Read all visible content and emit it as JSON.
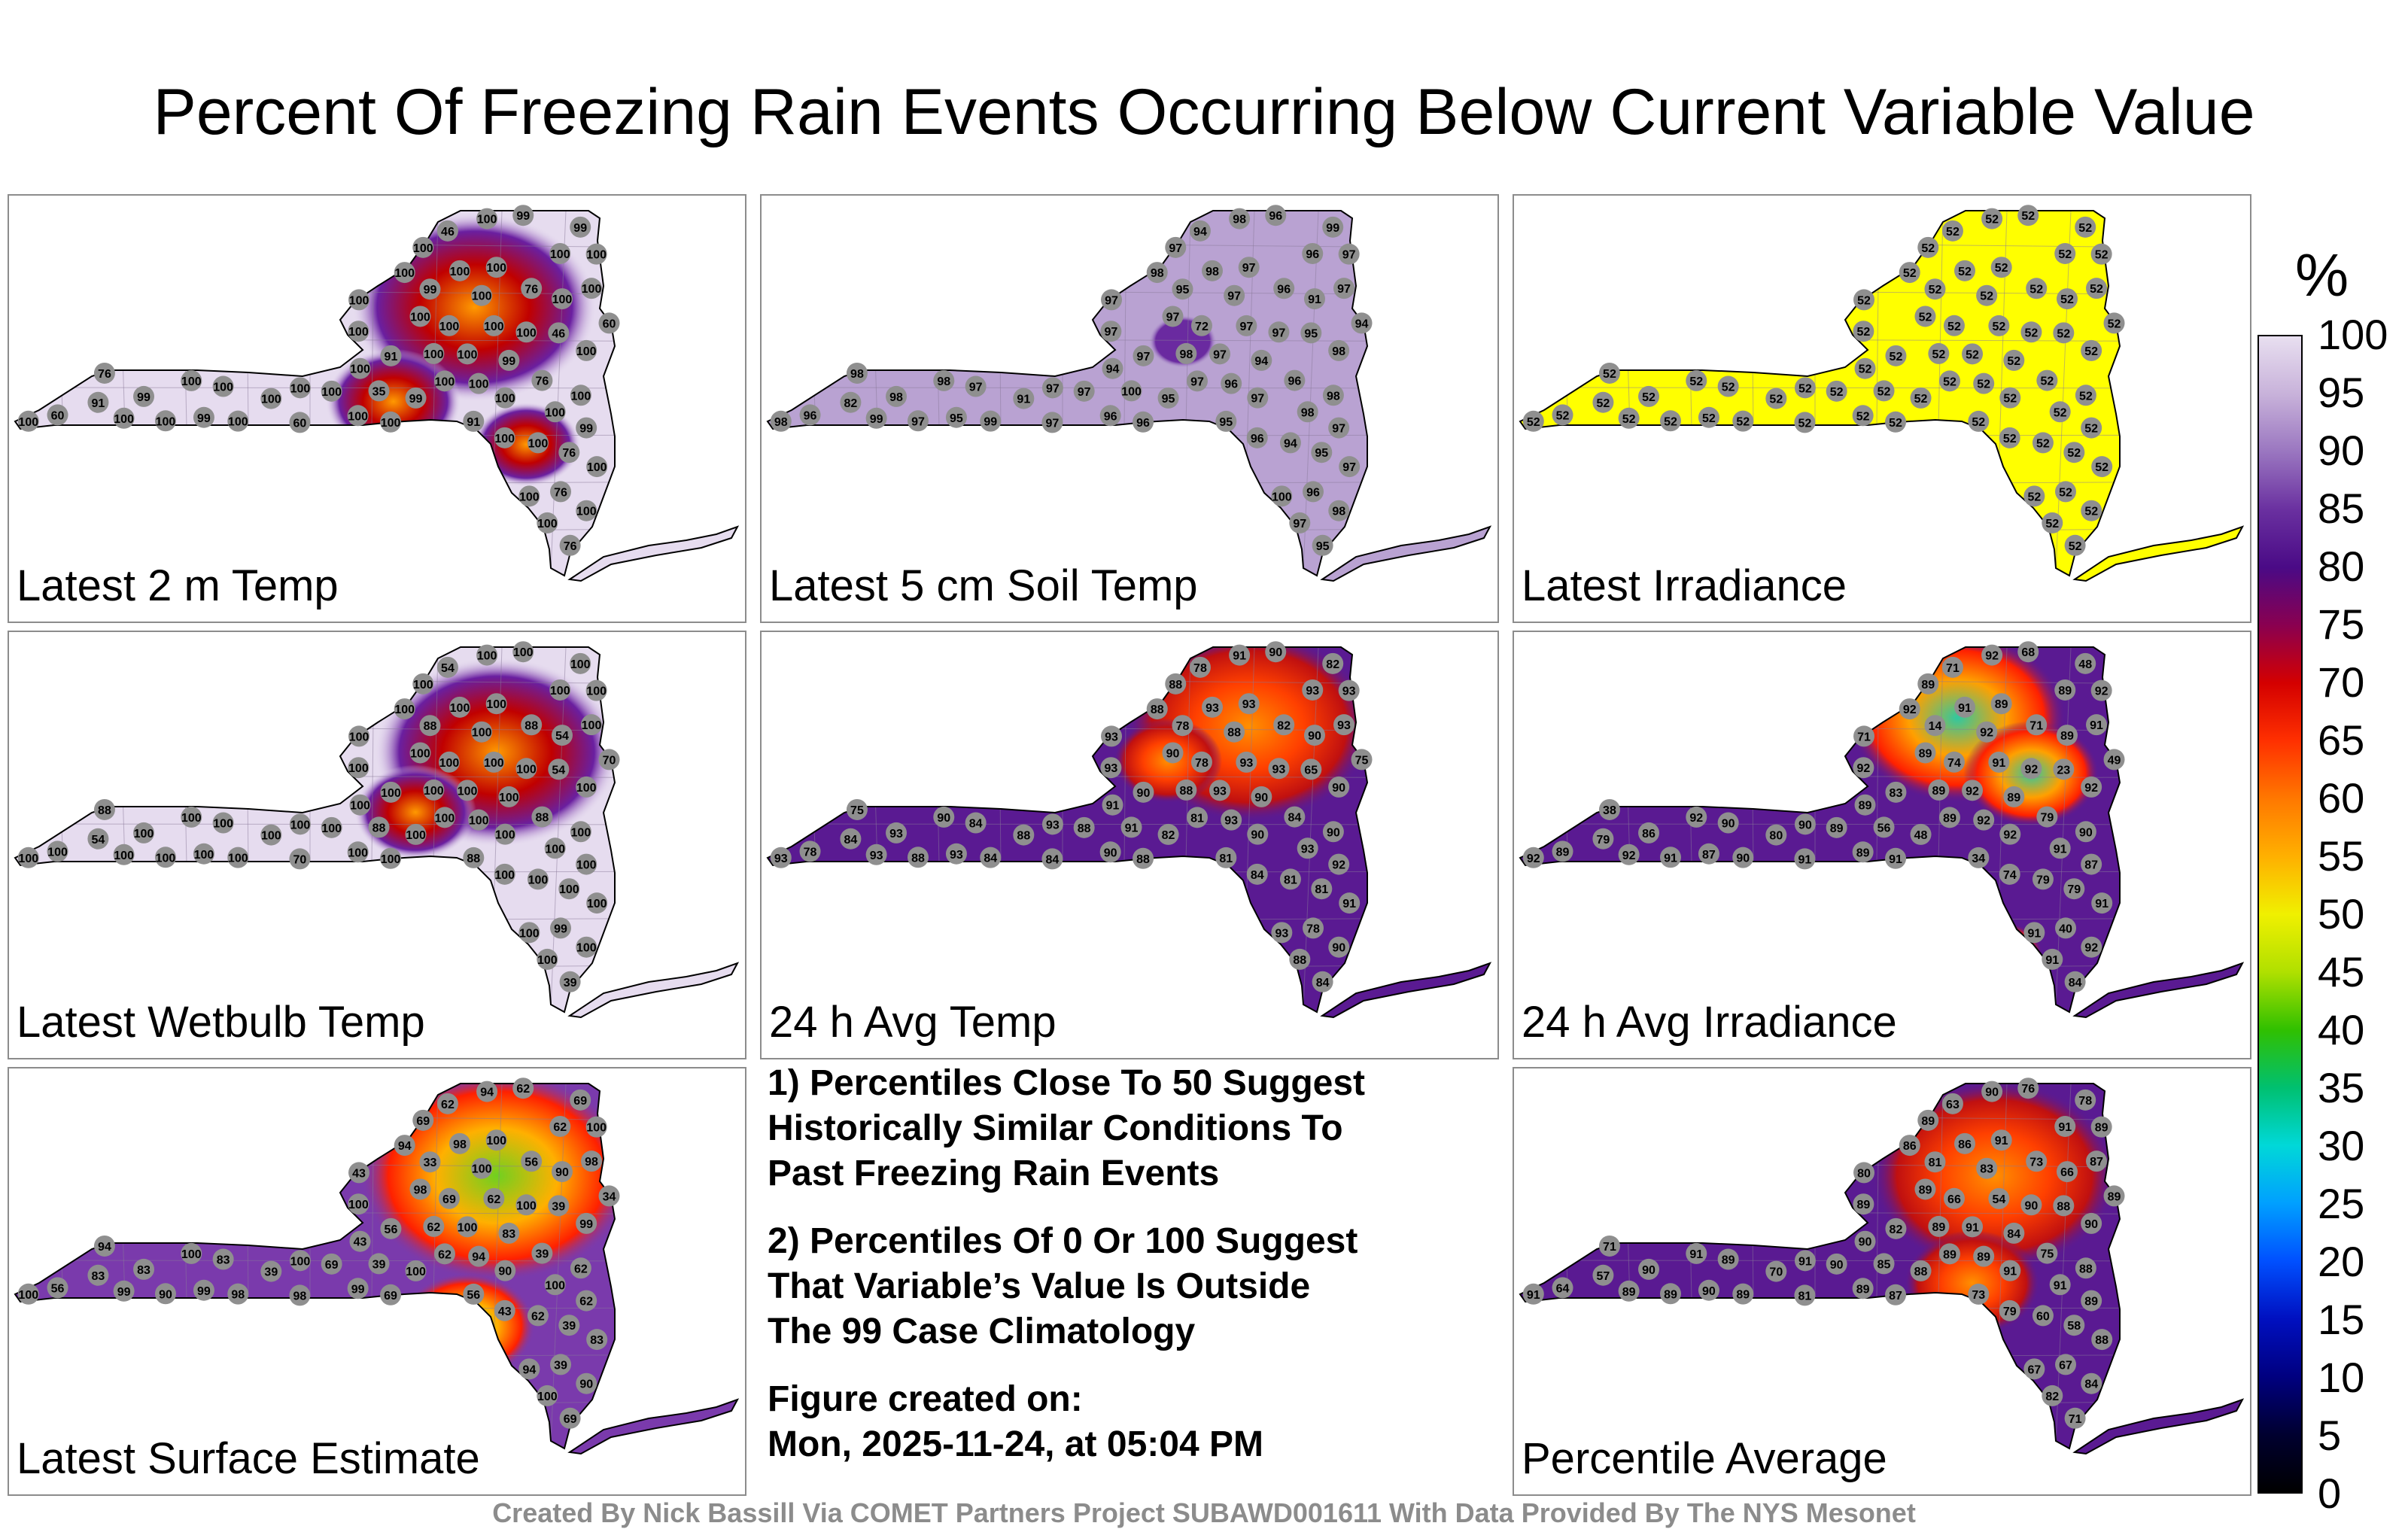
{
  "title": "Percent Of Freezing Rain Events Occurring Below Current Variable Value",
  "panels": [
    {
      "id": "p1",
      "label": "Latest 2 m Temp",
      "scheme": "low",
      "hot": [
        [
          0.63,
          0.26,
          0.9
        ],
        [
          0.52,
          0.48,
          0.5
        ],
        [
          0.7,
          0.58,
          0.4
        ]
      ],
      "stations": [
        "99",
        "91",
        "76",
        "76",
        "100",
        "76",
        "46",
        "60",
        "35",
        "91",
        "60",
        "99",
        "76",
        "46",
        "76",
        "76",
        "100",
        "99",
        "100",
        "100",
        "100",
        "100",
        "100",
        "100",
        "100",
        "100",
        "100",
        "99",
        "91",
        "99",
        "60",
        "100",
        "100",
        "100",
        "100",
        "99",
        "99",
        "100",
        "100",
        "100",
        "100",
        "100",
        "100",
        "100",
        "100",
        "100",
        "100",
        "100",
        "100",
        "100",
        "100",
        "100",
        "99",
        "100",
        "100",
        "100",
        "100",
        "100",
        "100",
        "100",
        "100",
        "100",
        "100",
        "100",
        "100"
      ]
    },
    {
      "id": "p2",
      "label": "Latest 5 cm Soil Temp",
      "scheme": "soil",
      "hot": [
        [
          0.57,
          0.34,
          0.25
        ]
      ],
      "stations": [
        "99",
        "95",
        "96",
        "96",
        "91",
        "95",
        "95",
        "94",
        "100",
        "82",
        "96",
        "95",
        "98",
        "94",
        "95",
        "96",
        "96",
        "96",
        "72",
        "94",
        "91",
        "97",
        "97",
        "100",
        "98",
        "97",
        "97",
        "97",
        "97",
        "94",
        "97",
        "96",
        "97",
        "96",
        "94",
        "98",
        "95",
        "97",
        "98",
        "97",
        "98",
        "98",
        "97",
        "97",
        "97",
        "99",
        "96",
        "98",
        "97",
        "99",
        "98",
        "97",
        "95",
        "97",
        "98",
        "98",
        "97",
        "96",
        "97",
        "97",
        "98",
        "97",
        "97",
        "97",
        "98"
      ]
    },
    {
      "id": "p3",
      "label": "Latest Irradiance",
      "scheme": "flat",
      "hot": [],
      "stations": [
        "52",
        "52",
        "52",
        "52",
        "52",
        "52",
        "52",
        "52",
        "52",
        "52",
        "52",
        "52",
        "52",
        "52",
        "52",
        "52",
        "52",
        "52",
        "52",
        "52",
        "52",
        "52",
        "52",
        "52",
        "52",
        "52",
        "52",
        "52",
        "52",
        "52",
        "52",
        "52",
        "52",
        "52",
        "52",
        "52",
        "52",
        "52",
        "52",
        "52",
        "52",
        "52",
        "52",
        "52",
        "52",
        "52",
        "52",
        "52",
        "52",
        "52",
        "52",
        "52",
        "52",
        "52",
        "52",
        "52",
        "52",
        "52",
        "52",
        "52",
        "52",
        "52",
        "52",
        "52",
        "52"
      ]
    },
    {
      "id": "p4",
      "label": "Latest Wetbulb Temp",
      "scheme": "low",
      "hot": [
        [
          0.66,
          0.28,
          0.9
        ],
        [
          0.55,
          0.42,
          0.45
        ]
      ],
      "stations": [
        "100",
        "88",
        "99",
        "88",
        "54",
        "39",
        "54",
        "70",
        "88",
        "54",
        "100",
        "88",
        "88",
        "54",
        "100",
        "88",
        "100",
        "100",
        "100",
        "100",
        "100",
        "100",
        "100",
        "100",
        "100",
        "100",
        "100",
        "100",
        "100",
        "100",
        "70",
        "100",
        "100",
        "100",
        "100",
        "100",
        "100",
        "100",
        "100",
        "100",
        "100",
        "100",
        "100",
        "100",
        "100",
        "100",
        "100",
        "100",
        "100",
        "100",
        "100",
        "100",
        "100",
        "100",
        "100",
        "100",
        "100",
        "100",
        "100",
        "100",
        "100",
        "100",
        "100",
        "100",
        "100"
      ]
    },
    {
      "id": "p5",
      "label": "24 h Avg Temp",
      "scheme": "mid",
      "hot": [
        [
          0.66,
          0.22,
          0.9
        ],
        [
          0.55,
          0.3,
          0.4
        ]
      ],
      "stations": [
        "82",
        "81",
        "78",
        "82",
        "90",
        "84",
        "65",
        "75",
        "91",
        "84",
        "78",
        "78",
        "75",
        "78",
        "81",
        "84",
        "84",
        "90",
        "78",
        "81",
        "88",
        "93",
        "93",
        "93",
        "93",
        "81",
        "88",
        "92",
        "90",
        "90",
        "84",
        "88",
        "84",
        "93",
        "91",
        "93",
        "93",
        "90",
        "88",
        "91",
        "90",
        "88",
        "93",
        "88",
        "88",
        "84",
        "90",
        "90",
        "93",
        "93",
        "90",
        "88",
        "82",
        "88",
        "90",
        "91",
        "90",
        "93",
        "93",
        "93",
        "93",
        "93",
        "93",
        "93",
        "93"
      ]
    },
    {
      "id": "p6",
      "label": "24 h Avg Irradiance",
      "scheme": "irr",
      "hot": [
        [
          0.6,
          0.2,
          0.8
        ],
        [
          0.7,
          0.33,
          0.5
        ],
        [
          0.66,
          0.75,
          0.3
        ]
      ],
      "stations": [
        "48",
        "34",
        "40",
        "71",
        "89",
        "84",
        "23",
        "49",
        "56",
        "79",
        "89",
        "14",
        "38",
        "71",
        "79",
        "79",
        "74",
        "68",
        "74",
        "79",
        "80",
        "71",
        "91",
        "91",
        "91",
        "89",
        "89",
        "87",
        "83",
        "89",
        "91",
        "91",
        "90",
        "89",
        "89",
        "86",
        "87",
        "89",
        "89",
        "91",
        "90",
        "92",
        "91",
        "91",
        "89",
        "90",
        "89",
        "92",
        "89",
        "92",
        "92",
        "91",
        "48",
        "92",
        "92",
        "92",
        "92",
        "92",
        "92",
        "90",
        "91",
        "92",
        "92",
        "92",
        "92"
      ]
    },
    {
      "id": "p7",
      "label": "Latest Surface Estimate",
      "scheme": "surf",
      "hot": [
        [
          0.66,
          0.25,
          1.0
        ],
        [
          0.62,
          0.6,
          0.5
        ]
      ],
      "stations": [
        "69",
        "56",
        "39",
        "56",
        "90",
        "69",
        "39",
        "34",
        "39",
        "83",
        "56",
        "33",
        "94",
        "62",
        "39",
        "39",
        "43",
        "62",
        "69",
        "62",
        "39",
        "43",
        "62",
        "94",
        "98",
        "62",
        "69",
        "62",
        "56",
        "83",
        "98",
        "69",
        "83",
        "62",
        "43",
        "83",
        "99",
        "98",
        "62",
        "83",
        "62",
        "94",
        "98",
        "90",
        "69",
        "98",
        "99",
        "100",
        "100",
        "99",
        "99",
        "100",
        "100",
        "100",
        "90",
        "94",
        "90",
        "94",
        "100",
        "100",
        "100",
        "100",
        "100",
        "100",
        "100"
      ]
    },
    {
      "id": "p9",
      "label": "Percentile Average",
      "scheme": "mid",
      "hot": [
        [
          0.65,
          0.25,
          0.9
        ],
        [
          0.62,
          0.5,
          0.5
        ]
      ],
      "stations": [
        "78",
        "73",
        "67",
        "73",
        "66",
        "71",
        "88",
        "89",
        "85",
        "57",
        "64",
        "81",
        "71",
        "63",
        "58",
        "75",
        "79",
        "76",
        "66",
        "60",
        "70",
        "80",
        "54",
        "67",
        "86",
        "89",
        "89",
        "89",
        "82",
        "84",
        "81",
        "87",
        "89",
        "91",
        "90",
        "90",
        "90",
        "89",
        "89",
        "88",
        "88",
        "86",
        "87",
        "89",
        "90",
        "89",
        "89",
        "91",
        "91",
        "89",
        "90",
        "82",
        "88",
        "83",
        "84",
        "90",
        "91",
        "89",
        "90",
        "91",
        "91",
        "89",
        "89",
        "91",
        "91"
      ]
    }
  ],
  "notes": {
    "note1": [
      "1) Percentiles Close To 50 Suggest",
      "Historically Similar Conditions To",
      "Past Freezing Rain Events"
    ],
    "note2": [
      "2) Percentiles Of 0 Or 100 Suggest",
      "That Variable’s Value Is Outside",
      "The 99 Case Climatology"
    ],
    "created_label": "Figure created on:",
    "created_value": "Mon, 2025-11-24, at 05:04 PM"
  },
  "footer": "Created By Nick Bassill Via COMET Partners Project SUBAWD001611 With Data Provided By The NYS Mesonet",
  "colorbar": {
    "unit": "%",
    "ticks": [
      "100",
      "95",
      "90",
      "85",
      "80",
      "75",
      "70",
      "65",
      "60",
      "55",
      "50",
      "45",
      "40",
      "35",
      "30",
      "25",
      "20",
      "15",
      "10",
      "5",
      "0"
    ],
    "stops": [
      "#e8dff0",
      "#c8b2da",
      "#9a76c0",
      "#6a30a0",
      "#4a0a86",
      "#8a0050",
      "#d40000",
      "#ff3000",
      "#ff7800",
      "#ffb000",
      "#f0f000",
      "#b0e000",
      "#30c000",
      "#00c070",
      "#00d8d8",
      "#00a0ff",
      "#0050ff",
      "#0010c0",
      "#000080",
      "#000030",
      "#000000"
    ]
  },
  "chart_data": [
    {
      "type": "heatmap",
      "title": "Latest 2 m Temp",
      "legend": "%",
      "range": [
        0,
        100
      ],
      "values": [
        99,
        91,
        76,
        76,
        100,
        76,
        46,
        60,
        35,
        91,
        60,
        99,
        76,
        46,
        100,
        100,
        100,
        100,
        60,
        100,
        99,
        100
      ]
    },
    {
      "type": "heatmap",
      "title": "Latest 5 cm Soil Temp",
      "legend": "%",
      "range": [
        0,
        100
      ],
      "values": [
        99,
        95,
        96,
        96,
        91,
        94,
        82,
        72,
        97,
        98,
        97,
        96,
        98,
        97
      ]
    },
    {
      "type": "heatmap",
      "title": "Latest Irradiance",
      "legend": "%",
      "range": [
        0,
        100
      ],
      "values": [
        52
      ]
    },
    {
      "type": "heatmap",
      "title": "Latest Wetbulb Temp",
      "legend": "%",
      "range": [
        0,
        100
      ],
      "values": [
        100,
        88,
        99,
        54,
        39,
        70,
        100
      ]
    },
    {
      "type": "heatmap",
      "title": "24 h Avg Temp",
      "legend": "%",
      "range": [
        0,
        100
      ],
      "values": [
        82,
        81,
        78,
        65,
        75,
        84,
        88,
        90,
        93,
        91
      ]
    },
    {
      "type": "heatmap",
      "title": "24 h Avg Irradiance",
      "legend": "%",
      "range": [
        0,
        100
      ],
      "values": [
        48,
        34,
        40,
        23,
        14,
        38,
        79,
        89,
        91,
        92
      ]
    },
    {
      "type": "heatmap",
      "title": "Latest Surface Estimate",
      "legend": "%",
      "range": [
        0,
        100
      ],
      "values": [
        69,
        56,
        39,
        34,
        33,
        43,
        62,
        83,
        94,
        98,
        100
      ]
    },
    {
      "type": "heatmap",
      "title": "Percentile Average",
      "legend": "%",
      "range": [
        0,
        100
      ],
      "values": [
        78,
        73,
        67,
        66,
        71,
        57,
        54,
        63,
        58,
        81,
        89,
        90,
        91
      ]
    }
  ]
}
